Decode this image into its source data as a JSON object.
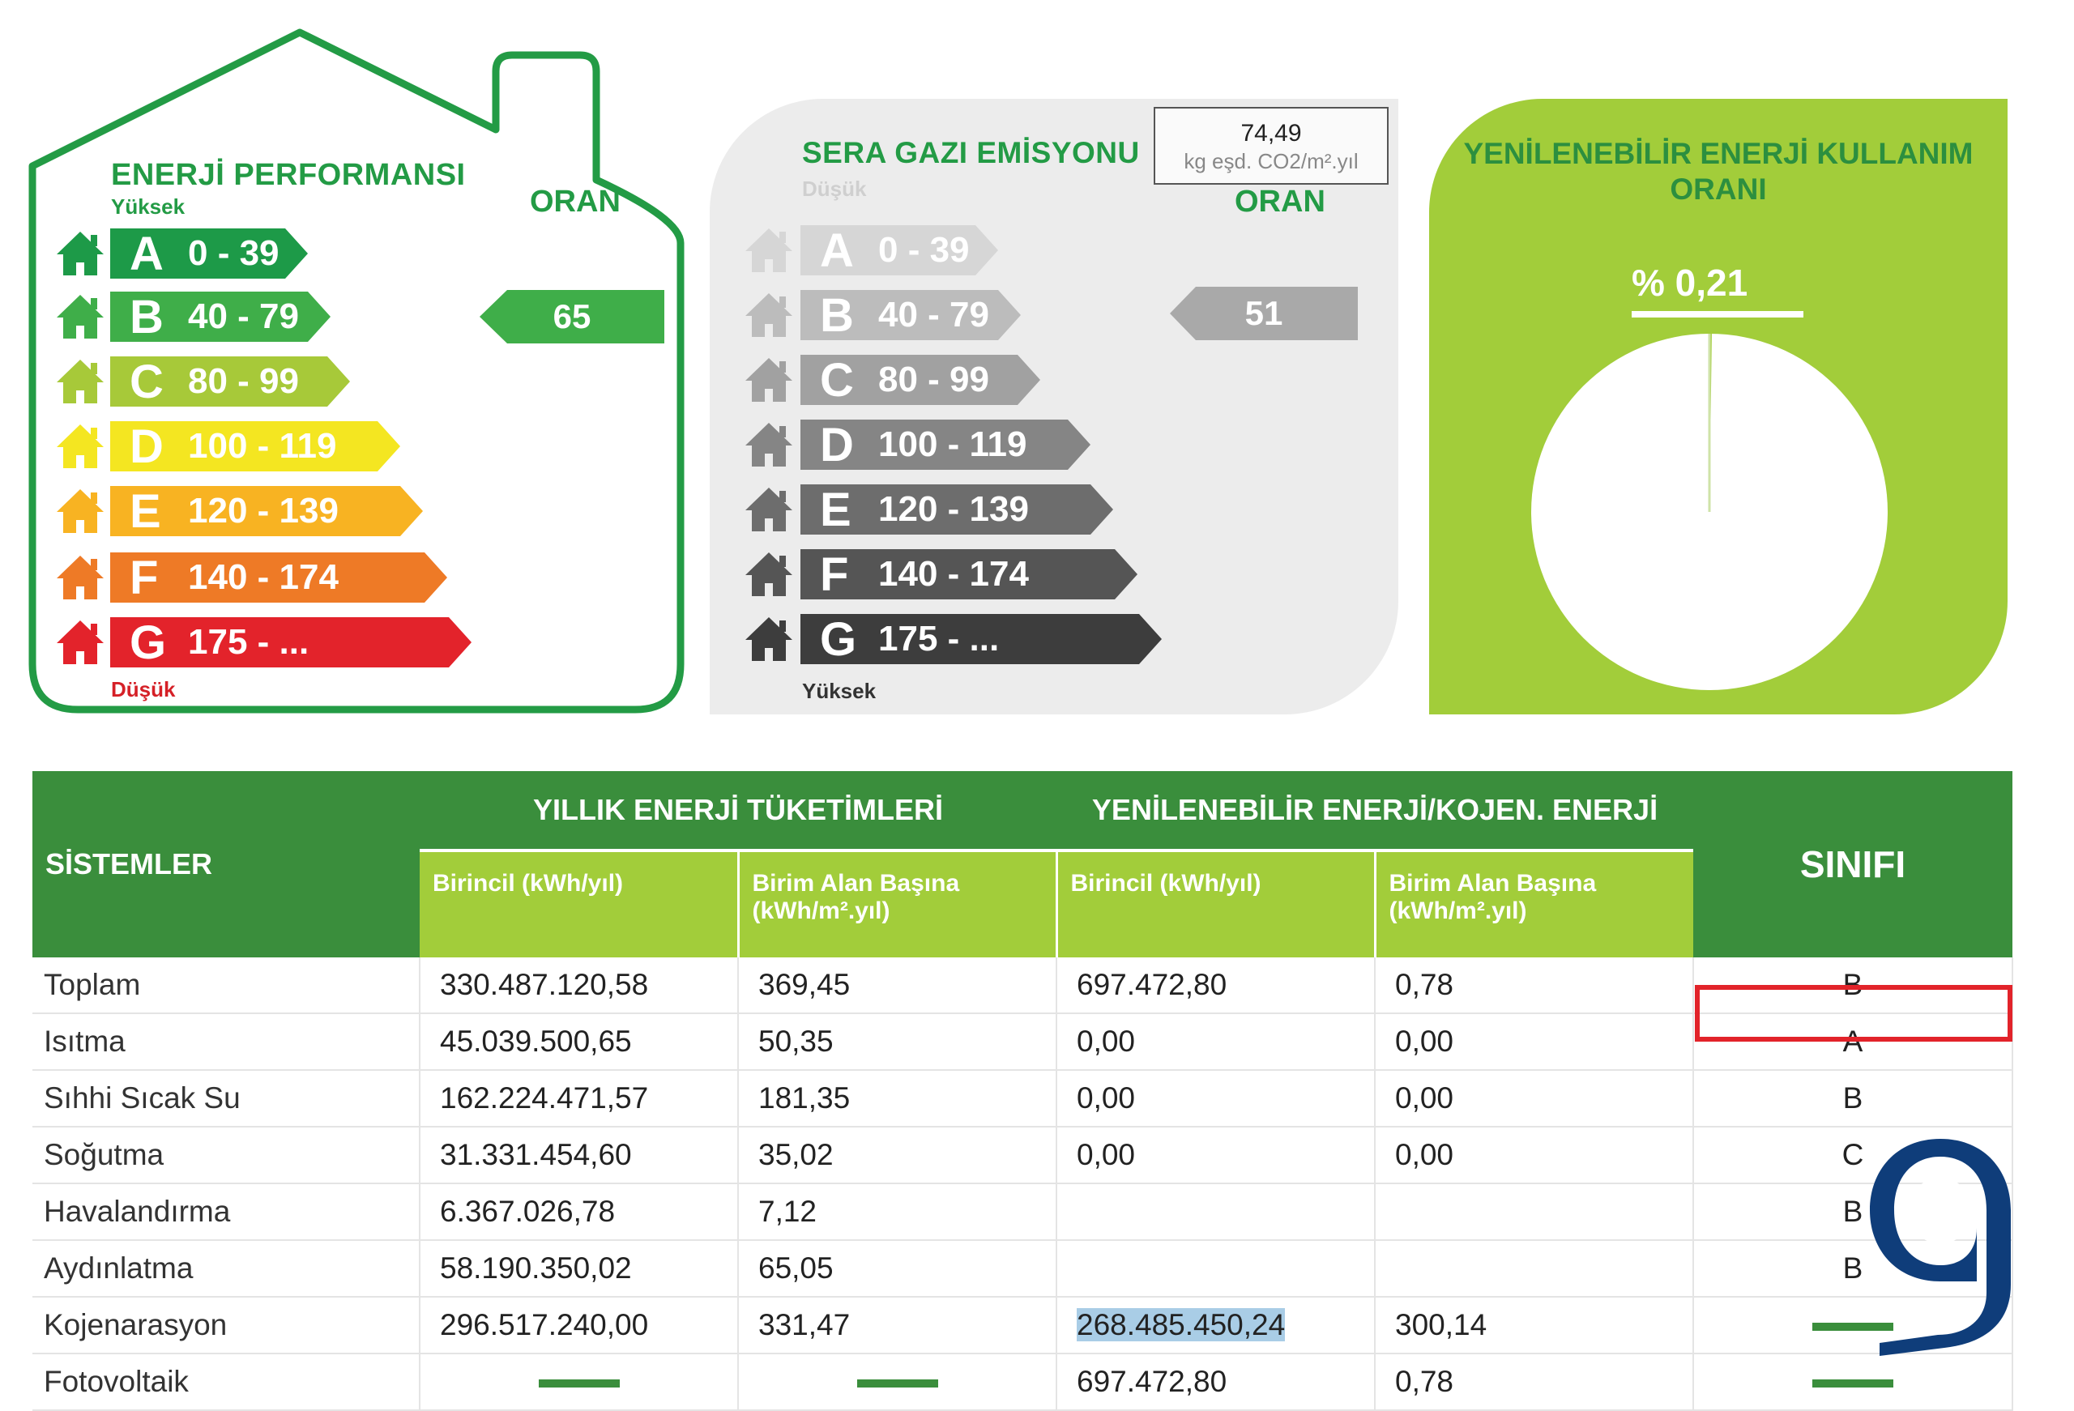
{
  "energy_performance": {
    "title": "ENERJİ PERFORMANSI",
    "high_label": "Yüksek",
    "low_label": "Düşük",
    "oran_label": "ORAN",
    "value": "65",
    "selected_class": "B",
    "classes": [
      {
        "letter": "A",
        "range": "0 - 39",
        "color": "#1d9a48"
      },
      {
        "letter": "B",
        "range": "40 - 79",
        "color": "#3fae49"
      },
      {
        "letter": "C",
        "range": "80 - 99",
        "color": "#a7c939"
      },
      {
        "letter": "D",
        "range": "100 - 119",
        "color": "#f4e621"
      },
      {
        "letter": "E",
        "range": "120 - 139",
        "color": "#f8b322"
      },
      {
        "letter": "F",
        "range": "140 - 174",
        "color": "#ee7a26"
      },
      {
        "letter": "G",
        "range": "175 - ...",
        "color": "#e3232b"
      }
    ]
  },
  "ghg_emission": {
    "title": "SERA GAZI EMİSYONU",
    "low_label": "Düşük",
    "high_label": "Yüksek",
    "oran_label": "ORAN",
    "value": "51",
    "selected_class": "B",
    "box_value": "74,49",
    "box_unit": "kg eşd. CO2/m².yıl",
    "classes": [
      {
        "letter": "A",
        "range": "0 - 39",
        "color": "#d6d6d6"
      },
      {
        "letter": "B",
        "range": "40 - 79",
        "color": "#bcbcbc"
      },
      {
        "letter": "C",
        "range": "80 - 99",
        "color": "#a1a1a1"
      },
      {
        "letter": "D",
        "range": "100 - 119",
        "color": "#858585"
      },
      {
        "letter": "E",
        "range": "120 - 139",
        "color": "#6d6d6d"
      },
      {
        "letter": "F",
        "range": "140 - 174",
        "color": "#555555"
      },
      {
        "letter": "G",
        "range": "175 - ...",
        "color": "#3d3d3d"
      }
    ]
  },
  "renewable": {
    "title_line1": "YENİLENEBİLİR ENERJİ KULLANIM",
    "title_line2": "ORANI",
    "value": "% 0,21",
    "fraction": 0.0021
  },
  "table": {
    "headers": {
      "systems": "SİSTEMLER",
      "annual": "YILLIK ENERJİ TÜKETİMLERİ",
      "renewable": "YENİLENEBİLİR ENERJİ/KOJEN. ENERJİ",
      "class": "SINIFI",
      "primary": "Birincil (kWh/yıl)",
      "per_area_1": "Birim Alan Başına",
      "per_area_2": "(kWh/m².yıl)"
    },
    "rows": [
      {
        "name": "Toplam",
        "primary": "330.487.120,58",
        "per_area": "369,45",
        "ren_primary": "697.472,80",
        "ren_per_area": "0,78",
        "class": "B"
      },
      {
        "name": "Isıtma",
        "primary": "45.039.500,65",
        "per_area": "50,35",
        "ren_primary": "0,00",
        "ren_per_area": "0,00",
        "class": "A"
      },
      {
        "name": "Sıhhi Sıcak Su",
        "primary": "162.224.471,57",
        "per_area": "181,35",
        "ren_primary": "0,00",
        "ren_per_area": "0,00",
        "class": "B"
      },
      {
        "name": "Soğutma",
        "primary": "31.331.454,60",
        "per_area": "35,02",
        "ren_primary": "0,00",
        "ren_per_area": "0,00",
        "class": "C"
      },
      {
        "name": "Havalandırma",
        "primary": "6.367.026,78",
        "per_area": "7,12",
        "ren_primary": "",
        "ren_per_area": "",
        "class": "B"
      },
      {
        "name": "Aydınlatma",
        "primary": "58.190.350,02",
        "per_area": "65,05",
        "ren_primary": "",
        "ren_per_area": "",
        "class": "B"
      },
      {
        "name": "Kojenarasyon",
        "primary": "296.517.240,00",
        "per_area": "331,47",
        "ren_primary": "268.485.450,24",
        "ren_per_area": "300,14",
        "class": "-"
      },
      {
        "name": "Fotovoltaik",
        "primary": "-",
        "per_area": "-",
        "ren_primary": "697.472,80",
        "ren_per_area": "0,78",
        "class": "-"
      }
    ]
  },
  "colors": {
    "green_dark": "#3a8e3c",
    "green_light": "#a2cd3a",
    "brand_green": "#239b45",
    "highlight_red": "#e2232a",
    "logo_blue": "#0f3d7a"
  },
  "logo_icon": "g-logo-icon"
}
